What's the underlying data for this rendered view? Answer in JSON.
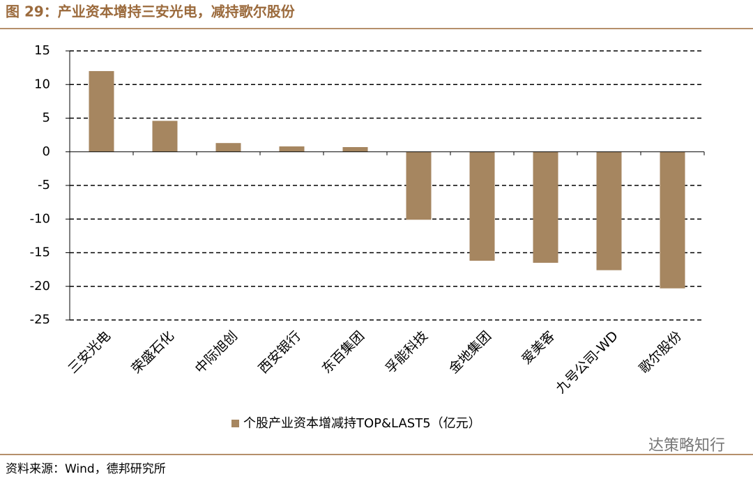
{
  "title": "图 29：产业资本增持三安光电，减持歌尔股份",
  "source": "资料来源：Wind，德邦研究所",
  "watermark": "达策略知行",
  "chart_data": {
    "type": "bar",
    "categories": [
      "三安光电",
      "荣盛石化",
      "中际旭创",
      "西安银行",
      "东百集团",
      "孚能科技",
      "金地集团",
      "爱美客",
      "九号公司-WD",
      "歌尔股份"
    ],
    "series": [
      {
        "name": "个股产业资本增减持TOP&LAST5（亿元）",
        "color": "#a68660",
        "values": [
          12.0,
          4.6,
          1.3,
          0.8,
          0.7,
          -10.1,
          -16.2,
          -16.5,
          -17.6,
          -20.3
        ]
      }
    ],
    "ylim": [
      -25,
      15
    ],
    "yticks": [
      -25,
      -20,
      -15,
      -10,
      -5,
      0,
      5,
      10,
      15
    ],
    "grid": true
  }
}
